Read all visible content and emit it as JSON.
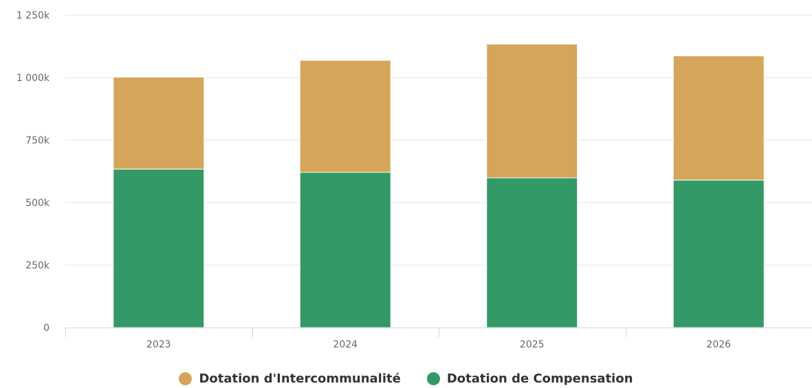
{
  "chart_data": {
    "type": "bar",
    "stacked": true,
    "categories": [
      "2023",
      "2024",
      "2025",
      "2026"
    ],
    "series": [
      {
        "name": "Dotation de Compensation",
        "color": "#339966",
        "values": [
          634000,
          621000,
          599000,
          590000
        ]
      },
      {
        "name": "Dotation d'Intercommunalité",
        "color": "#D4A55A",
        "values": [
          368000,
          448000,
          535000,
          497000
        ]
      }
    ],
    "ylim": [
      0,
      1250000
    ],
    "yticks": [
      0,
      250000,
      500000,
      750000,
      1000000,
      1250000
    ],
    "ytick_labels": [
      "0",
      "250k",
      "500k",
      "750k",
      "1 000k",
      "1 250k"
    ],
    "grid": true,
    "legend_position": "bottom-center",
    "legend_order": [
      "Dotation d'Intercommunalité",
      "Dotation de Compensation"
    ],
    "title": "",
    "xlabel": "",
    "ylabel": ""
  }
}
